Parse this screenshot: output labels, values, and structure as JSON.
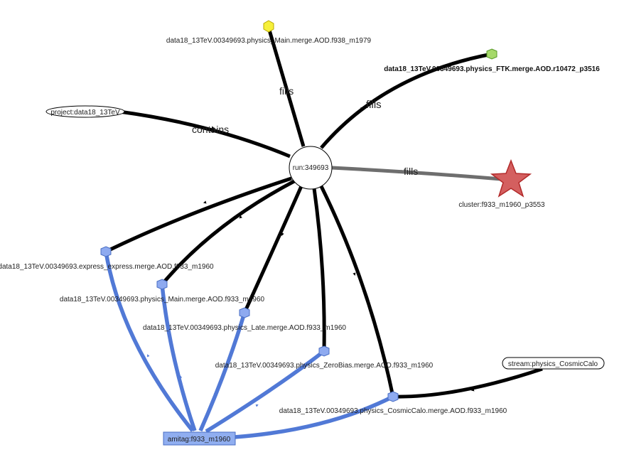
{
  "colors": {
    "black_edge": "#000000",
    "gray_edge": "#6e6e6e",
    "blue_edge": "#5179d6",
    "blue_node_fill": "#8eaaf0",
    "blue_node_stroke": "#4a6fc4",
    "yellow_node": "#f6f03a",
    "green_node": "#a6d96a",
    "star_fill": "#d45f5f",
    "star_stroke": "#b22a2a",
    "amitag_fill": "#90aef0",
    "amitag_stroke": "#4a6fc4"
  },
  "nodes": {
    "run": {
      "label": "run:349693"
    },
    "project": {
      "label": "project:data18_13TeV"
    },
    "physics_main_f938": {
      "label": "data18_13TeV.00349693.physics_Main.merge.AOD.f938_m1979",
      "icon": "yellow-hexagon-icon"
    },
    "physics_ftk": {
      "label": "data18_13TeV.00349693.physics_FTK.merge.AOD.r10472_p3516",
      "icon": "green-hexagon-icon"
    },
    "cluster": {
      "label": "cluster:f933_m1960_p3553",
      "icon": "red-star-icon"
    },
    "express": {
      "label": "data18_13TeV.00349693.express_express.merge.AOD.f933_m1960",
      "icon": "blue-hexagon-icon"
    },
    "physics_main_f933": {
      "label": "data18_13TeV.00349693.physics_Main.merge.AOD.f933_m1960",
      "icon": "blue-hexagon-icon"
    },
    "physics_late": {
      "label": "data18_13TeV.00349693.physics_Late.merge.AOD.f933_m1960",
      "icon": "blue-hexagon-icon"
    },
    "physics_zerobias": {
      "label": "data18_13TeV.00349693.physics_ZeroBias.merge.AOD.f933_m1960",
      "icon": "blue-hexagon-icon"
    },
    "physics_cosmiccalo": {
      "label": "data18_13TeV.00349693.physics_CosmicCalo.merge.AOD.f933_m1960",
      "icon": "blue-hexagon-icon"
    },
    "stream": {
      "label": "stream:physics_CosmicCalo"
    },
    "amitag": {
      "label": "amitag:f933_m1960"
    }
  },
  "edges": {
    "project_run": "contains",
    "run_main_f938": "fills",
    "run_ftk": "fills",
    "run_cluster": "fills"
  }
}
